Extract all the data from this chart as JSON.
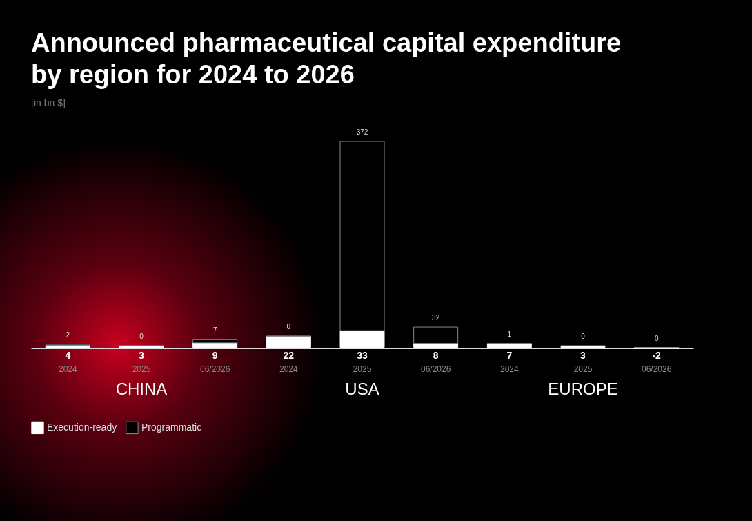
{
  "chart_data": {
    "type": "bar",
    "title": [
      "Announced pharmaceutical capital expenditure",
      "by region for 2024 to 2026"
    ],
    "subtitle": "[in bn $]",
    "categories": [
      "2024",
      "2025",
      "06/2026",
      "2024",
      "2025",
      "06/2026",
      "2024",
      "2025",
      "06/2026"
    ],
    "series": [
      {
        "name": "Execution-ready",
        "color": "#ffffff",
        "values": [
          4,
          3,
          9,
          22,
          33,
          8,
          7,
          3,
          -2
        ]
      },
      {
        "name": "Programmatic",
        "color": "#8a8a8a",
        "values": [
          2,
          0,
          7,
          0,
          372,
          32,
          1,
          0,
          0
        ]
      }
    ],
    "stacked": true,
    "data_labels": true,
    "legend": "bottom left",
    "annotations": [
      "CHINA",
      "USA",
      "EUROPE"
    ]
  }
}
